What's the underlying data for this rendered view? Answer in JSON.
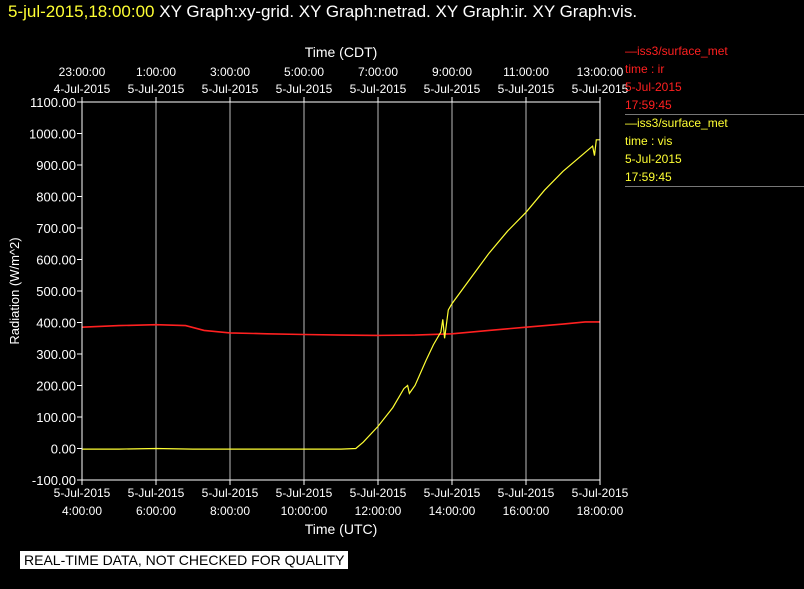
{
  "header": {
    "timestamp": "5-jul-2015,18:00:00",
    "graphs": "XY Graph:xy-grid.  XY Graph:netrad.  XY Graph:ir.  XY Graph:vis."
  },
  "notice": "REAL-TIME DATA, NOT CHECKED FOR QUALITY",
  "legend": [
    {
      "name": "—iss3/surface_met",
      "field": "time : ir",
      "date": "5-Jul-2015",
      "time": "17:59:45",
      "color": "#ff2020"
    },
    {
      "name": "—iss3/surface_met",
      "field": "time : vis",
      "date": "5-Jul-2015",
      "time": "17:59:45",
      "color": "#ffff33"
    }
  ],
  "chart_data": {
    "type": "line",
    "title": "",
    "xlabel": "Time (UTC)",
    "x2label": "Time (CDT)",
    "ylabel": "Radiation (W/m^2)",
    "xlim": [
      4,
      18
    ],
    "ylim": [
      -100,
      1100
    ],
    "grid": true,
    "x_ticks": [
      {
        "x": 4,
        "date": "5-Jul-2015",
        "time": "4:00:00"
      },
      {
        "x": 6,
        "date": "5-Jul-2015",
        "time": "6:00:00"
      },
      {
        "x": 8,
        "date": "5-Jul-2015",
        "time": "8:00:00"
      },
      {
        "x": 10,
        "date": "5-Jul-2015",
        "time": "10:00:00"
      },
      {
        "x": 12,
        "date": "5-Jul-2015",
        "time": "12:00:00"
      },
      {
        "x": 14,
        "date": "5-Jul-2015",
        "time": "14:00:00"
      },
      {
        "x": 16,
        "date": "5-Jul-2015",
        "time": "16:00:00"
      },
      {
        "x": 18,
        "date": "5-Jul-2015",
        "time": "18:00:00"
      }
    ],
    "x2_ticks": [
      {
        "x": 4,
        "time": "23:00:00",
        "date": "4-Jul-2015"
      },
      {
        "x": 6,
        "time": "1:00:00",
        "date": "5-Jul-2015"
      },
      {
        "x": 8,
        "time": "3:00:00",
        "date": "5-Jul-2015"
      },
      {
        "x": 10,
        "time": "5:00:00",
        "date": "5-Jul-2015"
      },
      {
        "x": 12,
        "time": "7:00:00",
        "date": "5-Jul-2015"
      },
      {
        "x": 14,
        "time": "9:00:00",
        "date": "5-Jul-2015"
      },
      {
        "x": 16,
        "time": "11:00:00",
        "date": "5-Jul-2015"
      },
      {
        "x": 18,
        "time": "13:00:00",
        "date": "5-Jul-2015"
      }
    ],
    "y_ticks": [
      "-100.00",
      "0.00",
      "100.00",
      "200.00",
      "300.00",
      "400.00",
      "500.00",
      "600.00",
      "700.00",
      "800.00",
      "900.00",
      "1000.00",
      "1100.00"
    ],
    "series": [
      {
        "name": "time : ir",
        "color": "#ff2020",
        "points": [
          [
            4,
            385
          ],
          [
            5,
            390
          ],
          [
            6,
            393
          ],
          [
            6.8,
            390
          ],
          [
            7.3,
            375
          ],
          [
            8,
            367
          ],
          [
            9,
            364
          ],
          [
            10,
            362
          ],
          [
            11,
            360
          ],
          [
            12,
            359
          ],
          [
            13,
            360
          ],
          [
            14,
            364
          ],
          [
            15,
            375
          ],
          [
            16,
            385
          ],
          [
            17,
            395
          ],
          [
            17.6,
            402
          ],
          [
            18,
            402
          ]
        ]
      },
      {
        "name": "time : vis",
        "color": "#ffff33",
        "points": [
          [
            4,
            -2
          ],
          [
            5,
            -2
          ],
          [
            6,
            0
          ],
          [
            7,
            -2
          ],
          [
            8,
            -2
          ],
          [
            9,
            -2
          ],
          [
            10,
            -2
          ],
          [
            11,
            -2
          ],
          [
            11.4,
            0
          ],
          [
            11.6,
            20
          ],
          [
            12,
            70
          ],
          [
            12.4,
            130
          ],
          [
            12.7,
            190
          ],
          [
            12.8,
            200
          ],
          [
            12.85,
            175
          ],
          [
            13,
            200
          ],
          [
            13.3,
            280
          ],
          [
            13.5,
            330
          ],
          [
            13.7,
            370
          ],
          [
            13.75,
            410
          ],
          [
            13.8,
            350
          ],
          [
            13.9,
            440
          ],
          [
            14,
            460
          ],
          [
            14.5,
            540
          ],
          [
            15,
            620
          ],
          [
            15.5,
            690
          ],
          [
            16,
            750
          ],
          [
            16.5,
            820
          ],
          [
            17,
            880
          ],
          [
            17.5,
            930
          ],
          [
            17.8,
            960
          ],
          [
            17.85,
            930
          ],
          [
            17.9,
            980
          ],
          [
            18,
            980
          ]
        ]
      }
    ]
  }
}
